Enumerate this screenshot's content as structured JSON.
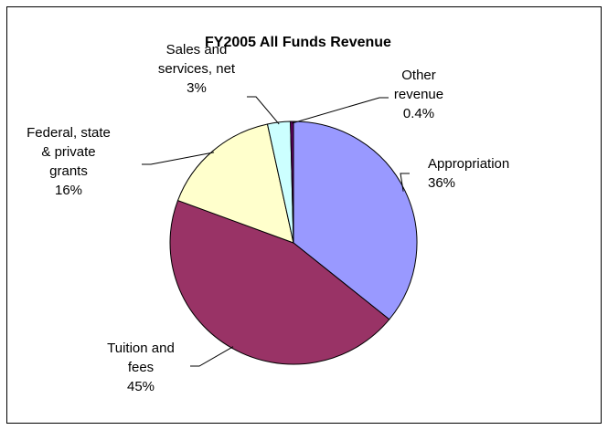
{
  "chart_data": {
    "type": "pie",
    "title": "FY2005 All Funds Revenue",
    "slices": [
      {
        "key": "appropriation",
        "label_lines": [
          "Appropriation"
        ],
        "percent_label": "36%",
        "value": 36,
        "color": "#9999ff"
      },
      {
        "key": "tuition",
        "label_lines": [
          "Tuition and",
          "fees"
        ],
        "percent_label": "45%",
        "value": 45,
        "color": "#993366"
      },
      {
        "key": "grants",
        "label_lines": [
          "Federal, state",
          "& private",
          "grants"
        ],
        "percent_label": "16%",
        "value": 16,
        "color": "#ffffcc"
      },
      {
        "key": "sales",
        "label_lines": [
          "Sales and",
          "services, net"
        ],
        "percent_label": "3%",
        "value": 3,
        "color": "#ccffff"
      },
      {
        "key": "other",
        "label_lines": [
          "Other",
          "revenue"
        ],
        "percent_label": "0.4%",
        "value": 0.4,
        "color": "#660066"
      }
    ],
    "legend": "none"
  }
}
